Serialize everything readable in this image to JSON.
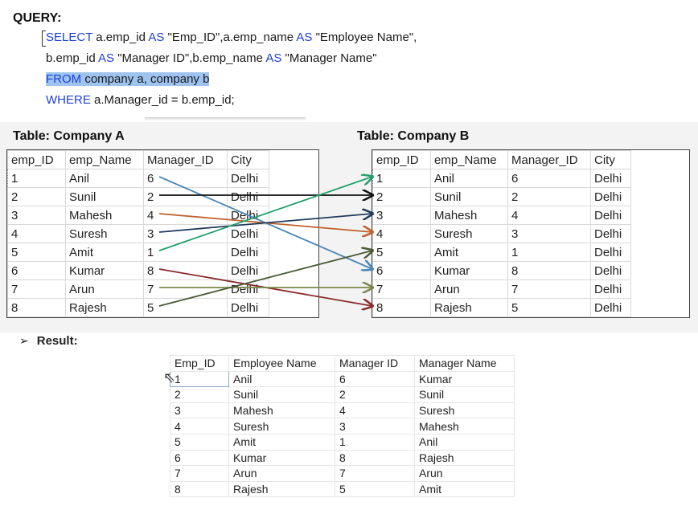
{
  "query": {
    "title": "QUERY:",
    "line1": {
      "kw1": "SELECT",
      "t1": " a.emp_id ",
      "kw2": "AS",
      "t2": " \"Emp_ID\",a.emp_name ",
      "kw3": "AS",
      "t3": " \"Employee Name\","
    },
    "line2": {
      "t1": "b.emp_id ",
      "kw1": "AS",
      "t2": " \"Manager ID\",b.emp_name ",
      "kw2": "AS",
      "t3": " \"Manager Name\""
    },
    "line3": {
      "kw1": "FROM",
      "t1": " company a, company b"
    },
    "line4": {
      "kw1": "WHERE",
      "t1": " a.Manager_id = b.emp_id;"
    }
  },
  "table_a": {
    "title": "Table: Company A",
    "headers": [
      "emp_ID",
      "emp_Name",
      "Manager_ID",
      "City"
    ],
    "rows": [
      [
        "1",
        "Anil",
        "6",
        "Delhi"
      ],
      [
        "2",
        "Sunil",
        "2",
        "Delhi"
      ],
      [
        "3",
        "Mahesh",
        "4",
        "Delhi"
      ],
      [
        "4",
        "Suresh",
        "3",
        "Delhi"
      ],
      [
        "5",
        "Amit",
        "1",
        "Delhi"
      ],
      [
        "6",
        "Kumar",
        "8",
        "Delhi"
      ],
      [
        "7",
        "Arun",
        "7",
        "Delhi"
      ],
      [
        "8",
        "Rajesh",
        "5",
        "Delhi"
      ]
    ]
  },
  "table_b": {
    "title": "Table: Company B",
    "headers": [
      "emp_ID",
      "emp_Name",
      "Manager_ID",
      "City"
    ],
    "rows": [
      [
        "1",
        "Anil",
        "6",
        "Delhi"
      ],
      [
        "2",
        "Sunil",
        "2",
        "Delhi"
      ],
      [
        "3",
        "Mahesh",
        "4",
        "Delhi"
      ],
      [
        "4",
        "Suresh",
        "3",
        "Delhi"
      ],
      [
        "5",
        "Amit",
        "1",
        "Delhi"
      ],
      [
        "6",
        "Kumar",
        "8",
        "Delhi"
      ],
      [
        "7",
        "Arun",
        "7",
        "Delhi"
      ],
      [
        "8",
        "Rajesh",
        "5",
        "Delhi"
      ]
    ]
  },
  "arrows": [
    {
      "from_row": 1,
      "to_row": 6,
      "color": "#4a86b8"
    },
    {
      "from_row": 2,
      "to_row": 2,
      "color": "#111111"
    },
    {
      "from_row": 3,
      "to_row": 4,
      "color": "#c0602a"
    },
    {
      "from_row": 4,
      "to_row": 3,
      "color": "#1f3d5c"
    },
    {
      "from_row": 5,
      "to_row": 1,
      "color": "#22a06b"
    },
    {
      "from_row": 6,
      "to_row": 8,
      "color": "#8a2a2a"
    },
    {
      "from_row": 7,
      "to_row": 7,
      "color": "#7a8a4a"
    },
    {
      "from_row": 8,
      "to_row": 5,
      "color": "#4a5a34"
    }
  ],
  "result": {
    "label": "Result:",
    "bullet": "➢",
    "headers": [
      "Emp_ID",
      "Employee Name",
      "Manager ID",
      "Manager Name"
    ],
    "rows": [
      [
        "1",
        "Anil",
        "6",
        "Kumar"
      ],
      [
        "2",
        "Sunil",
        "2",
        "Sunil"
      ],
      [
        "3",
        "Mahesh",
        "4",
        "Suresh"
      ],
      [
        "4",
        "Suresh",
        "3",
        "Mahesh"
      ],
      [
        "5",
        "Amit",
        "1",
        "Anil"
      ],
      [
        "6",
        "Kumar",
        "8",
        "Rajesh"
      ],
      [
        "7",
        "Arun",
        "7",
        "Arun"
      ],
      [
        "8",
        "Rajesh",
        "5",
        "Amit"
      ]
    ]
  }
}
